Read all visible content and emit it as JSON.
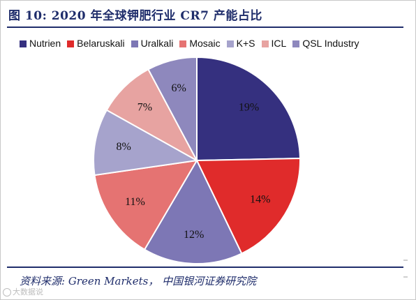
{
  "title": "图 10:  2020 年全球钾肥行业 CR7 产能占比",
  "source": "资料来源:  Green Markets，  中国银河证券研究院",
  "watermark": "大数据说",
  "chart_data": {
    "type": "pie",
    "categories": [
      "Nutrien",
      "Belaruskali",
      "Uralkali",
      "Mosaic",
      "K+S",
      "ICL",
      "QSL Industry"
    ],
    "values": [
      19,
      14,
      12,
      11,
      8,
      7,
      6
    ],
    "labels": [
      "19%",
      "14%",
      "12%",
      "11%",
      "8%",
      "7%",
      "6%"
    ],
    "colors": [
      "#35307f",
      "#e02b2b",
      "#7d77b5",
      "#e57372",
      "#a6a3cc",
      "#e7a3a1",
      "#8e88bd"
    ],
    "start": "12 o'clock",
    "direction": "clockwise",
    "legend_position": "top"
  }
}
